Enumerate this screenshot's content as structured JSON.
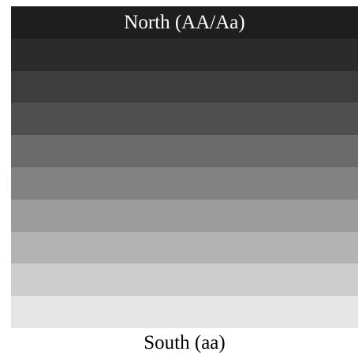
{
  "north_label": "North (AA/Aa)",
  "south_label": "South (aa)",
  "bands": [
    {
      "color": "#1e1e1e"
    },
    {
      "color": "#2b2b2b"
    },
    {
      "color": "#3d3d3d"
    },
    {
      "color": "#4f4f4f"
    },
    {
      "color": "#6b6b6b"
    },
    {
      "color": "#828282"
    },
    {
      "color": "#9c9c9c"
    },
    {
      "color": "#b3b3b3"
    },
    {
      "color": "#cdcdcd"
    },
    {
      "color": "#e6e6e6"
    }
  ]
}
